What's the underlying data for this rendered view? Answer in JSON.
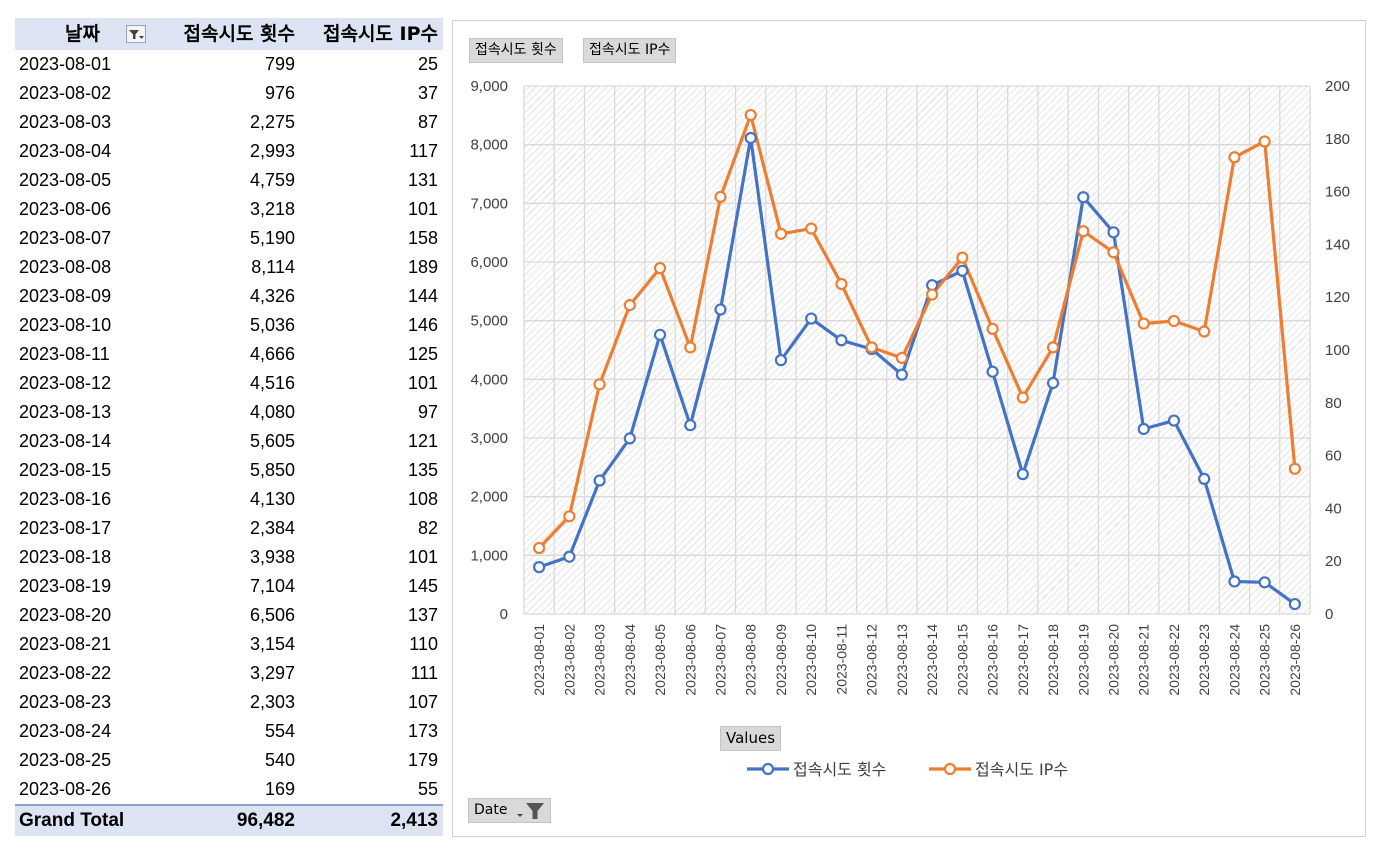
{
  "pivot": {
    "headers": {
      "date": "날짜",
      "attempts": "접속시도 횟수",
      "ips": "접속시도 IP수"
    },
    "rows": [
      {
        "date": "2023-08-01",
        "attempts": "799",
        "ips": "25"
      },
      {
        "date": "2023-08-02",
        "attempts": "976",
        "ips": "37"
      },
      {
        "date": "2023-08-03",
        "attempts": "2,275",
        "ips": "87"
      },
      {
        "date": "2023-08-04",
        "attempts": "2,993",
        "ips": "117"
      },
      {
        "date": "2023-08-05",
        "attempts": "4,759",
        "ips": "131"
      },
      {
        "date": "2023-08-06",
        "attempts": "3,218",
        "ips": "101"
      },
      {
        "date": "2023-08-07",
        "attempts": "5,190",
        "ips": "158"
      },
      {
        "date": "2023-08-08",
        "attempts": "8,114",
        "ips": "189"
      },
      {
        "date": "2023-08-09",
        "attempts": "4,326",
        "ips": "144"
      },
      {
        "date": "2023-08-10",
        "attempts": "5,036",
        "ips": "146"
      },
      {
        "date": "2023-08-11",
        "attempts": "4,666",
        "ips": "125"
      },
      {
        "date": "2023-08-12",
        "attempts": "4,516",
        "ips": "101"
      },
      {
        "date": "2023-08-13",
        "attempts": "4,080",
        "ips": "97"
      },
      {
        "date": "2023-08-14",
        "attempts": "5,605",
        "ips": "121"
      },
      {
        "date": "2023-08-15",
        "attempts": "5,850",
        "ips": "135"
      },
      {
        "date": "2023-08-16",
        "attempts": "4,130",
        "ips": "108"
      },
      {
        "date": "2023-08-17",
        "attempts": "2,384",
        "ips": "82"
      },
      {
        "date": "2023-08-18",
        "attempts": "3,938",
        "ips": "101"
      },
      {
        "date": "2023-08-19",
        "attempts": "7,104",
        "ips": "145"
      },
      {
        "date": "2023-08-20",
        "attempts": "6,506",
        "ips": "137"
      },
      {
        "date": "2023-08-21",
        "attempts": "3,154",
        "ips": "110"
      },
      {
        "date": "2023-08-22",
        "attempts": "3,297",
        "ips": "111"
      },
      {
        "date": "2023-08-23",
        "attempts": "2,303",
        "ips": "107"
      },
      {
        "date": "2023-08-24",
        "attempts": "554",
        "ips": "173"
      },
      {
        "date": "2023-08-25",
        "attempts": "540",
        "ips": "179"
      },
      {
        "date": "2023-08-26",
        "attempts": "169",
        "ips": "55"
      }
    ],
    "total": {
      "label": "Grand Total",
      "attempts": "96,482",
      "ips": "2,413"
    }
  },
  "chart_buttons": {
    "value_field_1": "접속시도 횟수",
    "value_field_2": "접속시도 IP수",
    "values": "Values",
    "date": "Date"
  },
  "colors": {
    "series1": "#4472c4",
    "series2": "#ed7d31",
    "header_bg": "#dce3f3"
  },
  "chart_data": {
    "type": "line",
    "title": "",
    "xlabel": "",
    "ylabel": "",
    "categories": [
      "2023-08-01",
      "2023-08-02",
      "2023-08-03",
      "2023-08-04",
      "2023-08-05",
      "2023-08-06",
      "2023-08-07",
      "2023-08-08",
      "2023-08-09",
      "2023-08-10",
      "2023-08-11",
      "2023-08-12",
      "2023-08-13",
      "2023-08-14",
      "2023-08-15",
      "2023-08-16",
      "2023-08-17",
      "2023-08-18",
      "2023-08-19",
      "2023-08-20",
      "2023-08-21",
      "2023-08-22",
      "2023-08-23",
      "2023-08-24",
      "2023-08-25",
      "2023-08-26"
    ],
    "series": [
      {
        "name": "접속시도 횟수",
        "axis": "left",
        "values": [
          799,
          976,
          2275,
          2993,
          4759,
          3218,
          5190,
          8114,
          4326,
          5036,
          4666,
          4516,
          4080,
          5605,
          5850,
          4130,
          2384,
          3938,
          7104,
          6506,
          3154,
          3297,
          2303,
          554,
          540,
          169
        ]
      },
      {
        "name": "접속시도 IP수",
        "axis": "right",
        "values": [
          25,
          37,
          87,
          117,
          131,
          101,
          158,
          189,
          144,
          146,
          125,
          101,
          97,
          121,
          135,
          108,
          82,
          101,
          145,
          137,
          110,
          111,
          107,
          173,
          179,
          55
        ]
      }
    ],
    "y_left": {
      "min": 0,
      "max": 9000,
      "step": 1000,
      "tick_labels": [
        "0",
        "1,000",
        "2,000",
        "3,000",
        "4,000",
        "5,000",
        "6,000",
        "7,000",
        "8,000",
        "9,000"
      ]
    },
    "y_right": {
      "min": 0,
      "max": 200,
      "step": 20,
      "tick_labels": [
        "0",
        "20",
        "40",
        "60",
        "80",
        "100",
        "120",
        "140",
        "160",
        "180",
        "200"
      ]
    },
    "grid": true,
    "legend_position": "bottom"
  }
}
